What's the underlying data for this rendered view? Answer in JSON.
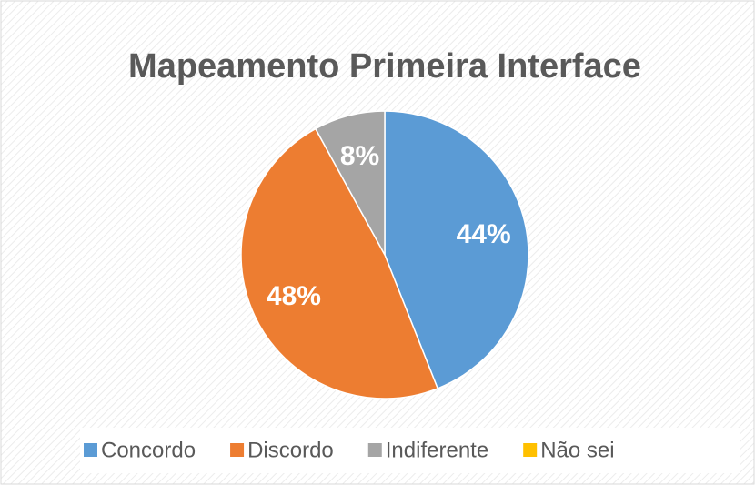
{
  "chart_data": {
    "type": "pie",
    "title": "Mapeamento Primeira Interface",
    "categories": [
      "Concordo",
      "Discordo",
      "Indiferente",
      "Não sei"
    ],
    "values": [
      44,
      48,
      8,
      0
    ],
    "value_labels": [
      "44%",
      "48%",
      "8%",
      null
    ],
    "colors": [
      "#5b9bd5",
      "#ed7d31",
      "#a5a5a5",
      "#ffc000"
    ],
    "legend": "bottom"
  }
}
